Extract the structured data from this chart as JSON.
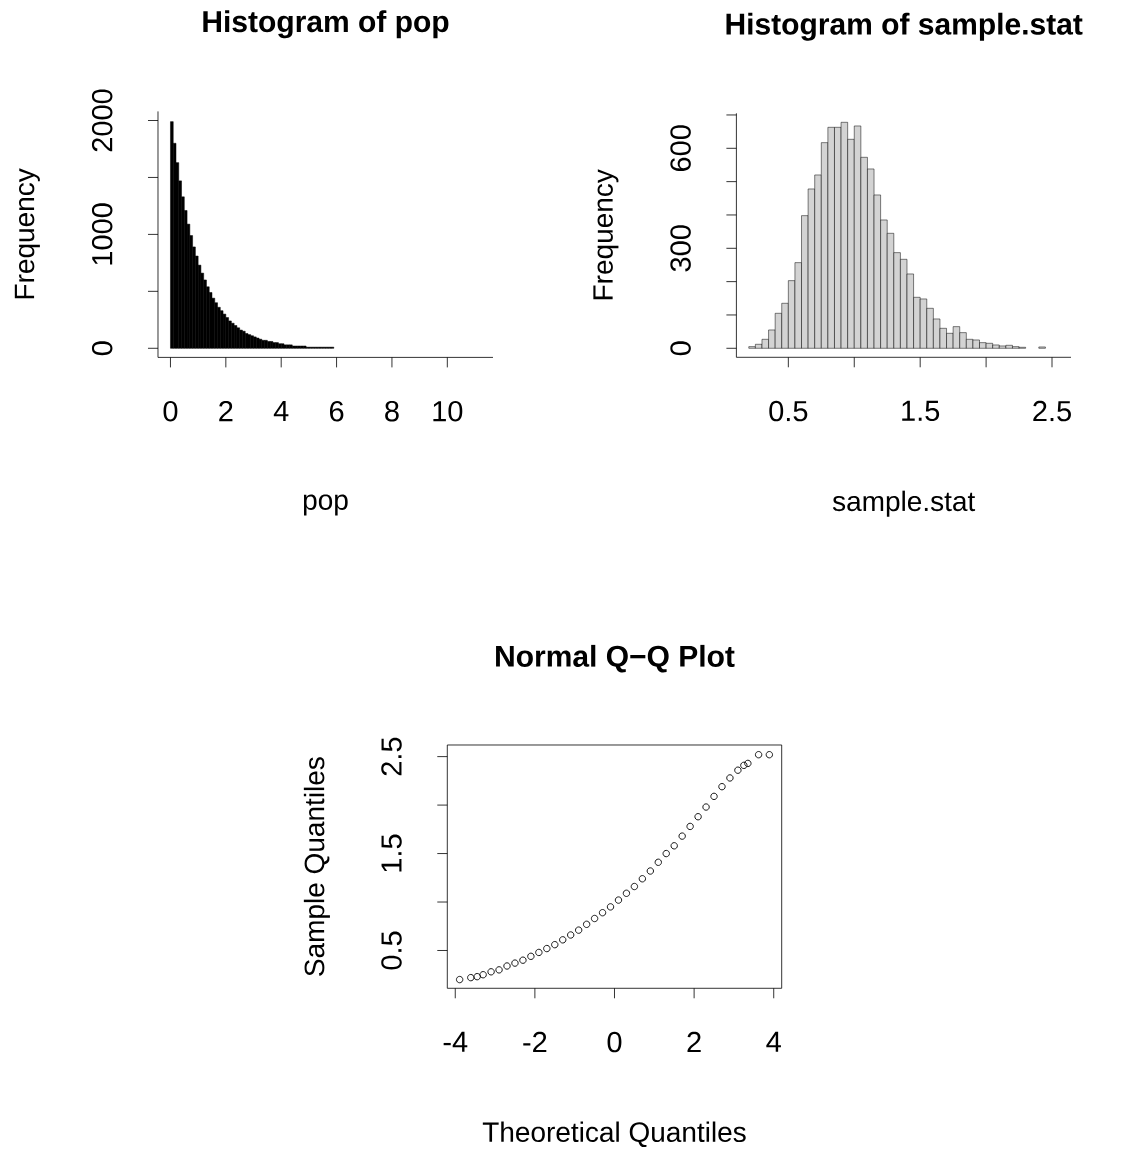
{
  "chart_data": [
    {
      "type": "histogram",
      "title": "Histogram of pop",
      "xlabel": "pop",
      "ylabel": "Frequency",
      "color": "#000000",
      "bins": [
        0,
        0.1,
        0.2,
        0.3,
        0.4,
        0.5,
        0.6,
        0.7,
        0.8,
        0.9,
        1.0,
        1.1,
        1.2,
        1.3,
        1.4,
        1.5,
        1.6,
        1.7,
        1.8,
        1.9,
        2.0,
        2.1,
        2.2,
        2.3,
        2.4,
        2.5,
        2.6,
        2.7,
        2.8,
        2.9,
        3.0,
        3.1,
        3.2,
        3.3,
        3.4,
        3.5,
        3.6,
        3.7,
        3.8,
        3.9,
        4.0,
        4.1,
        4.2,
        4.3,
        4.4,
        4.5,
        4.6,
        4.7,
        4.8,
        4.9,
        5.0,
        5.1,
        5.2,
        5.3,
        5.4,
        5.5,
        5.6,
        5.7,
        5.8,
        5.9,
        6.0,
        6.1,
        6.2,
        6.3,
        6.4,
        6.5,
        6.6,
        6.7,
        6.8,
        6.9,
        7.0,
        7.1,
        7.2,
        7.3,
        7.4,
        7.5,
        7.6,
        7.7,
        7.8,
        7.9,
        8.0,
        8.1,
        8.2,
        8.3,
        8.4,
        8.5,
        8.6,
        8.7,
        8.8,
        8.9,
        9.0,
        9.1,
        9.2,
        9.3,
        9.4,
        9.5,
        9.6,
        9.7,
        9.8,
        9.9,
        10.0,
        10.1,
        10.2,
        10.3,
        10.4,
        10.5,
        10.6,
        10.7,
        10.8,
        10.9,
        11.0,
        11.1,
        11.2
      ],
      "values": [
        1990,
        1800,
        1630,
        1470,
        1330,
        1210,
        1090,
        990,
        890,
        810,
        730,
        660,
        600,
        540,
        490,
        440,
        400,
        360,
        330,
        300,
        270,
        240,
        220,
        200,
        180,
        160,
        150,
        130,
        120,
        110,
        100,
        90,
        80,
        70,
        70,
        60,
        60,
        50,
        50,
        40,
        40,
        30,
        30,
        30,
        20,
        20,
        20,
        20,
        20,
        10,
        10,
        10,
        10,
        10,
        10,
        10,
        10,
        10,
        10,
        0,
        0,
        0,
        0,
        0,
        0,
        0,
        0,
        0,
        0,
        0,
        0,
        0,
        0,
        0,
        0,
        0,
        0,
        0,
        0,
        0,
        0,
        0,
        0,
        0,
        0,
        0,
        0,
        0,
        0,
        0,
        0,
        0,
        0,
        0,
        0,
        0,
        0,
        0,
        0,
        0,
        0,
        0,
        0,
        0,
        0,
        0,
        0,
        0,
        0,
        0,
        0,
        0
      ],
      "xlim": [
        -0.45,
        11.65
      ],
      "ylim": [
        -80,
        2080
      ],
      "xticks": [
        0,
        2,
        4,
        6,
        8,
        10
      ],
      "yticks": [
        0,
        {
          "value": 500,
          "label": null
        },
        1000,
        {
          "value": 1500,
          "label": null
        },
        2000
      ]
    },
    {
      "type": "histogram",
      "title": "Histogram of sample.stat",
      "xlabel": "sample.stat",
      "ylabel": "Frequency",
      "color": "#d3d3d3",
      "bins": [
        0.2,
        0.25,
        0.3,
        0.35,
        0.4,
        0.45,
        0.5,
        0.55,
        0.6,
        0.65,
        0.7,
        0.75,
        0.8,
        0.85,
        0.9,
        0.95,
        1.0,
        1.05,
        1.1,
        1.15,
        1.2,
        1.25,
        1.3,
        1.35,
        1.4,
        1.45,
        1.5,
        1.55,
        1.6,
        1.65,
        1.7,
        1.75,
        1.8,
        1.85,
        1.9,
        1.95,
        2.0,
        2.05,
        2.1,
        2.15,
        2.2,
        2.25,
        2.3,
        2.35,
        2.4,
        2.45,
        2.5,
        2.55
      ],
      "values": [
        5,
        12,
        27,
        55,
        105,
        135,
        203,
        257,
        398,
        478,
        520,
        617,
        663,
        663,
        678,
        627,
        667,
        573,
        538,
        460,
        385,
        345,
        287,
        267,
        223,
        153,
        148,
        120,
        88,
        60,
        45,
        65,
        47,
        27,
        25,
        17,
        15,
        10,
        7,
        9,
        5,
        3,
        null,
        null,
        4,
        null,
        null
      ],
      "xlim": [
        0.106,
        2.644
      ],
      "ylim": [
        -27,
        705
      ],
      "xticks": [
        0.5,
        {
          "value": 1.0,
          "label": null
        },
        1.5,
        {
          "value": 2.0,
          "label": null
        },
        2.5
      ],
      "yticks": [
        0,
        {
          "value": 100,
          "label": null
        },
        {
          "value": 200,
          "label": null
        },
        300,
        {
          "value": 400,
          "label": null
        },
        {
          "value": 500,
          "label": null
        },
        600,
        {
          "value": 700,
          "label": null
        }
      ]
    },
    {
      "type": "scatter",
      "title": "Normal Q−Q Plot",
      "xlabel": "Theoretical Quantiles",
      "ylabel": "Sample Quantiles",
      "color": "#000000",
      "marker": "circle",
      "x": [
        -3.89,
        -3.61,
        -3.45,
        -3.3,
        -3.1,
        -2.9,
        -2.7,
        -2.5,
        -2.3,
        -2.1,
        -1.9,
        -1.7,
        -1.5,
        -1.3,
        -1.1,
        -0.9,
        -0.7,
        -0.5,
        -0.3,
        -0.1,
        0.1,
        0.3,
        0.5,
        0.7,
        0.9,
        1.1,
        1.3,
        1.5,
        1.7,
        1.9,
        2.1,
        2.3,
        2.5,
        2.7,
        2.9,
        3.1,
        3.25,
        3.35,
        3.62,
        3.89
      ],
      "values": [
        0.2,
        0.22,
        0.23,
        0.25,
        0.28,
        0.3,
        0.34,
        0.37,
        0.4,
        0.44,
        0.48,
        0.52,
        0.56,
        0.61,
        0.66,
        0.71,
        0.77,
        0.83,
        0.89,
        0.95,
        1.02,
        1.09,
        1.16,
        1.24,
        1.32,
        1.41,
        1.5,
        1.58,
        1.68,
        1.78,
        1.88,
        1.98,
        2.09,
        2.19,
        2.28,
        2.36,
        2.41,
        2.43,
        2.52,
        2.52
      ],
      "xlim": [
        -4.2,
        4.2
      ],
      "ylim": [
        0.11,
        2.62
      ],
      "xticks": [
        -4,
        -2,
        0,
        2,
        4
      ],
      "yticks": [
        0.5,
        {
          "value": 1.0,
          "label": null
        },
        1.5,
        {
          "value": 2.0,
          "label": null
        },
        2.5
      ]
    }
  ]
}
